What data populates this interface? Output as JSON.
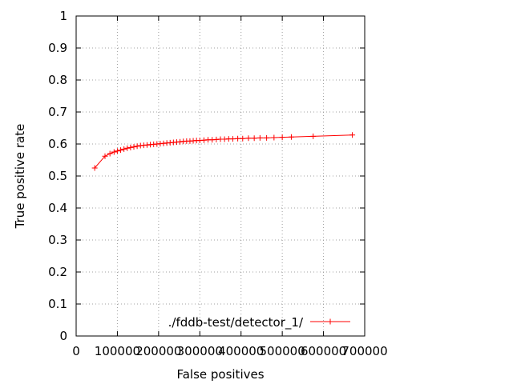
{
  "chart_data": {
    "type": "line",
    "title": "",
    "xlabel": "False positives",
    "ylabel": "True positive rate",
    "xlim": [
      0,
      700000
    ],
    "ylim": [
      0,
      1
    ],
    "xticks": [
      0,
      100000,
      200000,
      300000,
      400000,
      500000,
      600000,
      700000
    ],
    "yticks": [
      0,
      0.1,
      0.2,
      0.3,
      0.4,
      0.5,
      0.6,
      0.7,
      0.8,
      0.9,
      1
    ],
    "xtick_labels": [
      "0",
      "100000",
      "200000",
      "300000",
      "400000",
      "500000",
      "600000",
      "700000"
    ],
    "ytick_labels": [
      "0",
      "0.1",
      "0.2",
      "0.3",
      "0.4",
      "0.5",
      "0.6",
      "0.7",
      "0.8",
      "0.9",
      "1"
    ],
    "grid": true,
    "legend_position": "bottom-right",
    "series": [
      {
        "name": "./fddb-test/detector_1/",
        "color": "#ff0000",
        "marker": "plus",
        "x": [
          45000,
          70000,
          82000,
          92000,
          100000,
          108000,
          116000,
          124000,
          132000,
          140000,
          148000,
          156000,
          164000,
          172000,
          180000,
          188000,
          196000,
          204000,
          212000,
          220000,
          228000,
          236000,
          244000,
          252000,
          260000,
          268000,
          276000,
          284000,
          292000,
          300000,
          310000,
          320000,
          330000,
          340000,
          350000,
          360000,
          370000,
          380000,
          392000,
          404000,
          418000,
          432000,
          446000,
          462000,
          480000,
          500000,
          522000,
          575000,
          670000
        ],
        "y": [
          0.525,
          0.562,
          0.57,
          0.575,
          0.578,
          0.581,
          0.584,
          0.587,
          0.589,
          0.591,
          0.593,
          0.595,
          0.596,
          0.597,
          0.598,
          0.599,
          0.6,
          0.601,
          0.602,
          0.603,
          0.604,
          0.605,
          0.606,
          0.607,
          0.608,
          0.609,
          0.609,
          0.61,
          0.611,
          0.611,
          0.612,
          0.613,
          0.613,
          0.614,
          0.615,
          0.615,
          0.616,
          0.616,
          0.617,
          0.617,
          0.618,
          0.618,
          0.619,
          0.619,
          0.62,
          0.621,
          0.622,
          0.624,
          0.628
        ]
      }
    ]
  }
}
